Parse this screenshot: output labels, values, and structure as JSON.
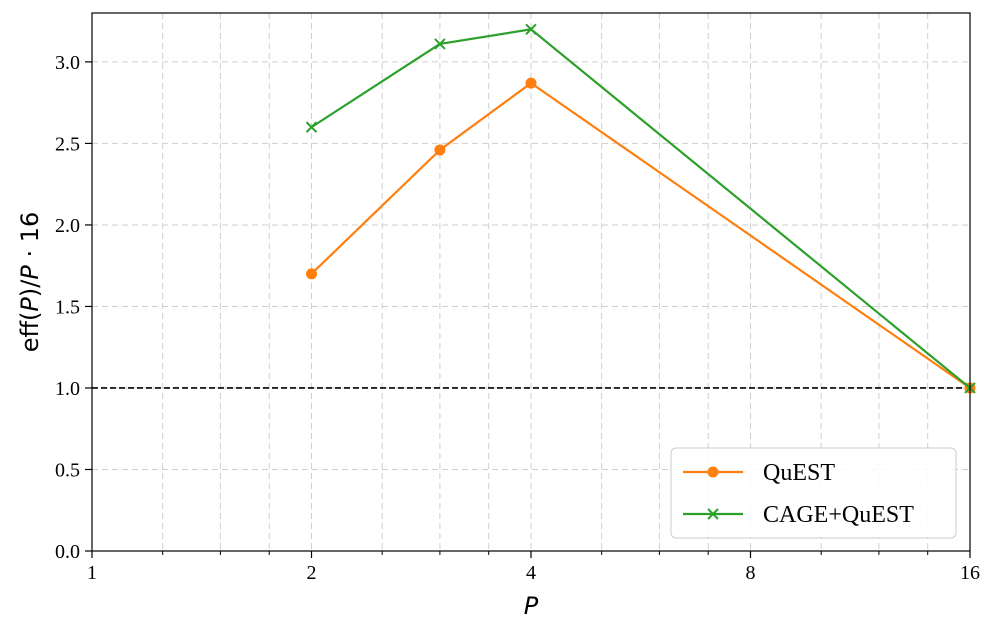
{
  "chart_data": {
    "type": "line",
    "xscale": "log2",
    "xlim": [
      1,
      16
    ],
    "ylim": [
      0,
      3.3
    ],
    "xticks": [
      1,
      2,
      4,
      8,
      16
    ],
    "xtick_labels": [
      "1",
      "2",
      "4",
      "8",
      "16"
    ],
    "yticks": [
      0,
      0.5,
      1.0,
      1.5,
      2.0,
      2.5,
      3.0
    ],
    "ytick_labels": [
      "0.0",
      "0.5",
      "1.0",
      "1.5",
      "2.0",
      "2.5",
      "3.0"
    ],
    "xlabel": "P",
    "ylabel_parts": {
      "prefix": "eff(",
      "var1": "P",
      "middle": ")/",
      "var2": "P",
      "suffix": " · 16"
    },
    "grid": true,
    "grid_style": "dashed",
    "reference_line": {
      "y": 1.0,
      "style": "dashed",
      "color": "#000000"
    },
    "legend_position": "lower-right",
    "series": [
      {
        "name": "QuEST",
        "color": "#ff7f0e",
        "marker": "circle",
        "x": [
          2,
          3,
          4,
          16
        ],
        "y": [
          1.7,
          2.46,
          2.87,
          1.0
        ]
      },
      {
        "name": "CAGE+QuEST",
        "color": "#2ca02c",
        "marker": "x",
        "x": [
          2,
          3,
          4,
          16
        ],
        "y": [
          2.6,
          3.11,
          3.2,
          1.0
        ]
      }
    ]
  }
}
